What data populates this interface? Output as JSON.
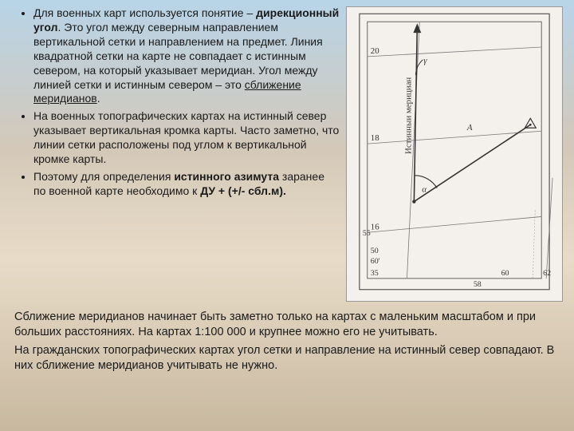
{
  "bullets": [
    {
      "segments": [
        {
          "t": "Для военных карт используется понятие – "
        },
        {
          "t": "дирекционный угол",
          "b": true
        },
        {
          "t": ". Это угол между северным направлением вертикальной сетки и направлением на предмет. Линия квадратной сетки на карте не совпадает с истинным севером, на который указывает меридиан. Угол между линией сетки и истинным севером – это "
        },
        {
          "t": "сближение меридианов",
          "u": true
        },
        {
          "t": "."
        }
      ]
    },
    {
      "segments": [
        {
          "t": "На военных топографических картах на истинный север указывает вертикальная кромка карты. Часто заметно, что линии сетки расположены под углом к вертикальной кромке карты."
        }
      ]
    },
    {
      "segments": [
        {
          "t": "Поэтому для определения "
        },
        {
          "t": "истинного азимута",
          "b": true
        },
        {
          "t": " заранее по военной карте необходимо к "
        },
        {
          "t": "ДУ + (+/- сбл.м).",
          "b": true
        }
      ]
    }
  ],
  "bottom_paragraphs": [
    "Сближение меридианов начинает быть заметно только на картах с маленьким масштабом и при больших расстояниях. На картах 1:100 000 и крупнее можно его не учитывать.",
    "На гражданских топографических картах угол сетки и направление на истинный север совпадают. В них сближение меридианов учитывать не нужно."
  ],
  "diagram": {
    "grid_labels_left": [
      "20",
      "18",
      "16"
    ],
    "grid_labels_bottom_left": [
      "55",
      "50",
      "60'",
      "35"
    ],
    "grid_labels_bottom_right": [
      "60",
      "62"
    ],
    "grid_label_mid": "58",
    "vertical_label": "Истинныи мерициан",
    "angle_labels": {
      "alpha": "α",
      "gamma": "γ",
      "A": "A"
    },
    "colors": {
      "stroke": "#555",
      "grid": "#777"
    }
  }
}
